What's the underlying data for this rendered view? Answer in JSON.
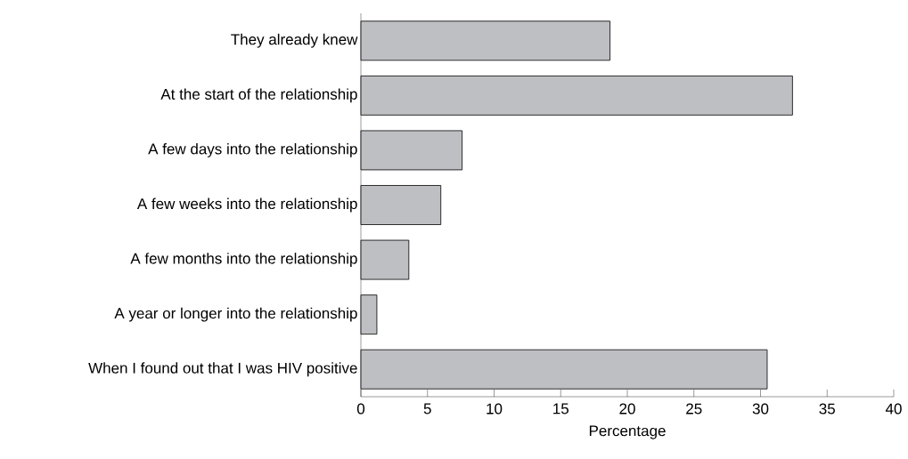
{
  "chart_data": {
    "type": "bar",
    "orientation": "horizontal",
    "xlabel": "Percentage",
    "categories": [
      "They already knew",
      "At the start of the relationship",
      "A few days into the relationship",
      "A few weeks into the relationship",
      "A few months into the relationship",
      "A year or longer into the relationship",
      "When I found out that I was HIV positive"
    ],
    "values": [
      18.7,
      32.4,
      7.6,
      6.0,
      3.6,
      1.2,
      30.5
    ],
    "color": "#bebfc3",
    "xlim": [
      0,
      40
    ],
    "xticks": [
      0,
      5,
      10,
      15,
      20,
      25,
      30,
      35,
      40
    ]
  }
}
